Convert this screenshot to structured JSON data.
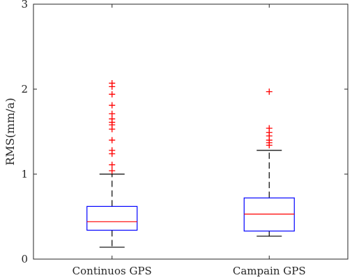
{
  "chart_data": {
    "type": "boxplot",
    "title": "",
    "xlabel": "",
    "ylabel": "RMS(mm/a)",
    "ylim": [
      0,
      3
    ],
    "yticks": [
      0,
      1,
      2,
      3
    ],
    "grid": false,
    "categories": [
      "Continuos GPS",
      "Campain GPS"
    ],
    "boxes": [
      {
        "category": "Continuos GPS",
        "whisker_low": 0.14,
        "q1": 0.34,
        "median": 0.44,
        "q3": 0.62,
        "whisker_high": 1.0,
        "outliers": [
          1.04,
          1.11,
          1.24,
          1.28,
          1.4,
          1.53,
          1.58,
          1.61,
          1.65,
          1.71,
          1.81,
          1.94,
          2.03,
          2.07
        ]
      },
      {
        "category": "Campain GPS",
        "whisker_low": 0.27,
        "q1": 0.33,
        "median": 0.53,
        "q3": 0.72,
        "whisker_high": 1.28,
        "outliers": [
          1.34,
          1.37,
          1.4,
          1.45,
          1.49,
          1.54,
          1.97
        ]
      }
    ],
    "colors": {
      "box": "#0000ff",
      "median": "#ff0000",
      "whisker": "#000000",
      "outlier": "#ff0000",
      "axis": "#262626"
    }
  }
}
